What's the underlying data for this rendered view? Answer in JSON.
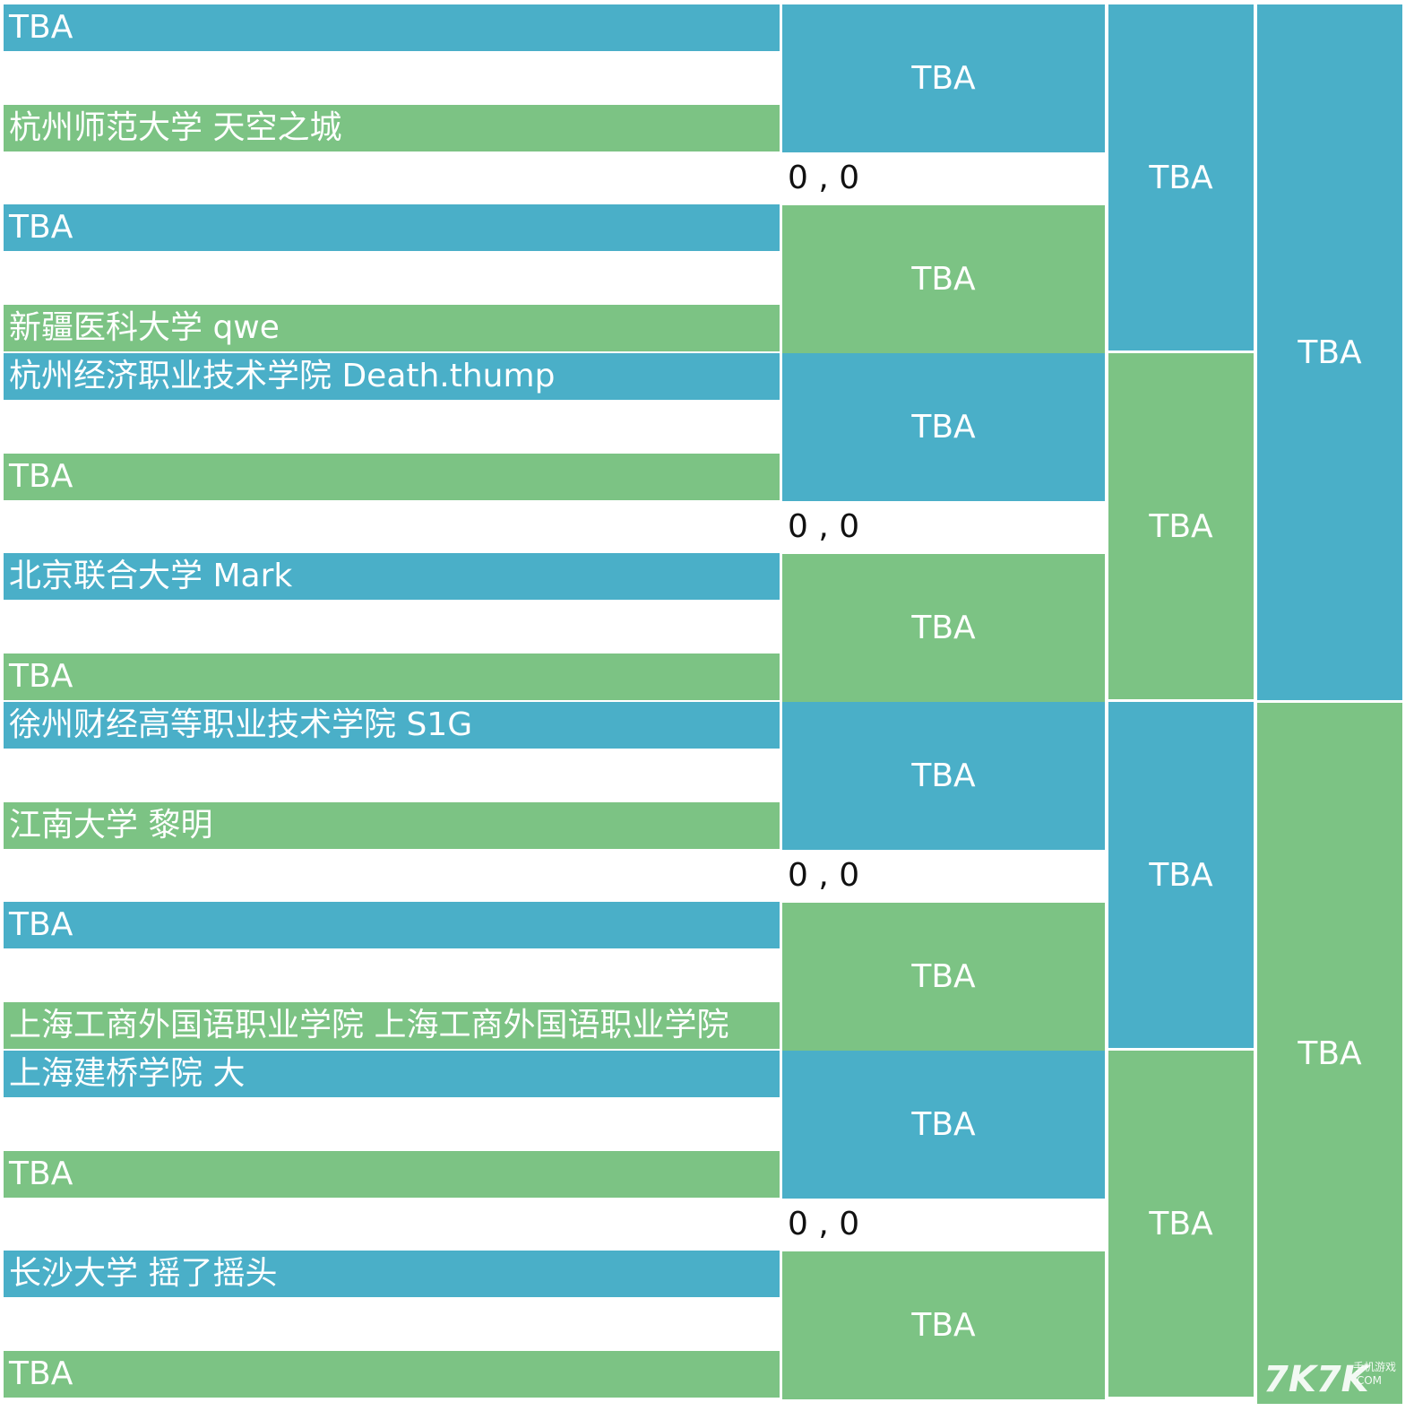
{
  "colors": {
    "blue": "#4aafc8",
    "green": "#7cc384",
    "background": "#ffffff"
  },
  "round1": [
    "TBA",
    "杭州师范大学 天空之城",
    "TBA",
    "新疆医科大学 qwe",
    "杭州经济职业技术学院 Death.thump",
    "TBA",
    "北京联合大学 Mark",
    "TBA",
    "徐州财经高等职业技术学院 S1G",
    "江南大学 黎明",
    "TBA",
    "上海工商外国语职业学院 上海工商外国语职业学院",
    "上海建桥学院 大",
    "TBA",
    "长沙大学 摇了摇头",
    "TBA"
  ],
  "round2": [
    "TBA",
    "TBA",
    "TBA",
    "TBA",
    "TBA",
    "TBA",
    "TBA",
    "TBA"
  ],
  "scores": [
    "0 , 0",
    "0 , 0",
    "0 , 0",
    "0 , 0"
  ],
  "round3": [
    "TBA",
    "TBA",
    "TBA",
    "TBA"
  ],
  "round4": [
    "TBA",
    "TBA"
  ],
  "watermark": {
    "main": "7K7K",
    "sub_top": "手机游戏",
    "sub_bottom": ".COM"
  }
}
